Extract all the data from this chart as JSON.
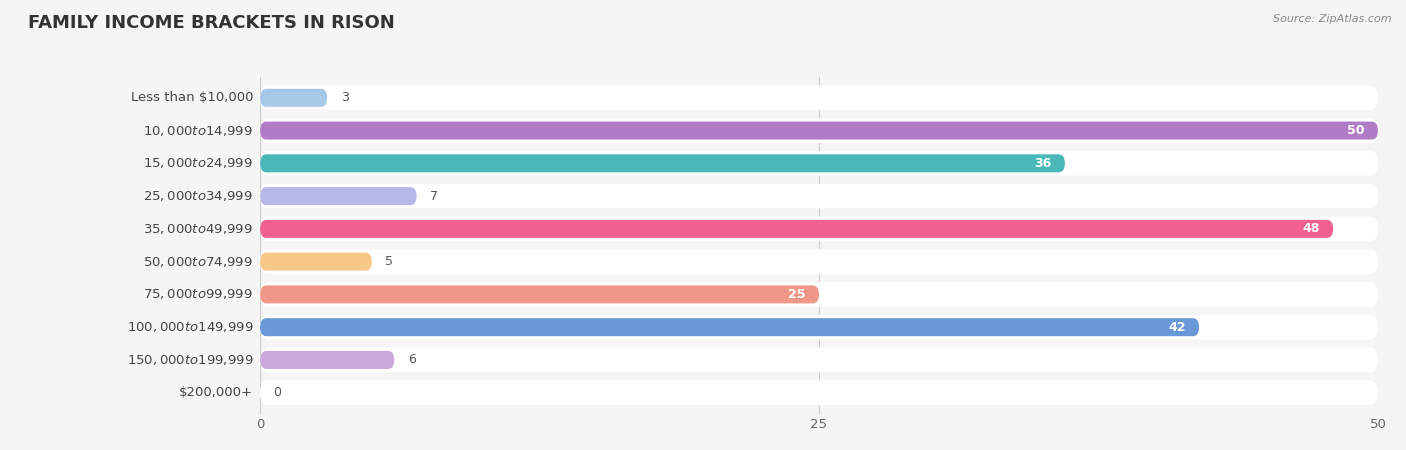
{
  "title": "FAMILY INCOME BRACKETS IN RISON",
  "source": "Source: ZipAtlas.com",
  "categories": [
    "Less than $10,000",
    "$10,000 to $14,999",
    "$15,000 to $24,999",
    "$25,000 to $34,999",
    "$35,000 to $49,999",
    "$50,000 to $74,999",
    "$75,000 to $99,999",
    "$100,000 to $149,999",
    "$150,000 to $199,999",
    "$200,000+"
  ],
  "values": [
    3,
    50,
    36,
    7,
    48,
    5,
    25,
    42,
    6,
    0
  ],
  "bar_colors": [
    "#a8c8e8",
    "#b07cc6",
    "#4ab8b8",
    "#b8b8e8",
    "#f06090",
    "#f5c888",
    "#f09888",
    "#6898d8",
    "#c8a8d8",
    "#88ccd0"
  ],
  "xlim": [
    0,
    50
  ],
  "xticks": [
    0,
    25,
    50
  ],
  "background_color": "#f5f5f5",
  "title_fontsize": 13,
  "label_fontsize": 9.5,
  "value_fontsize": 9
}
